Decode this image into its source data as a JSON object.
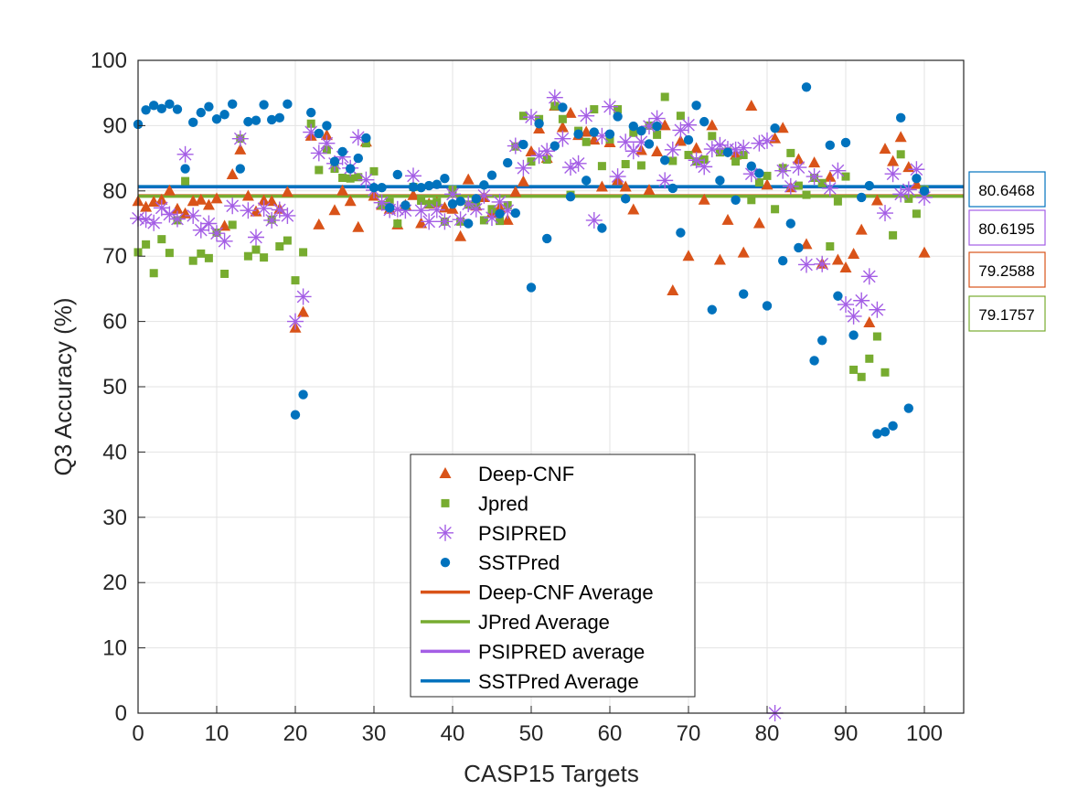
{
  "chart_data": {
    "type": "scatter",
    "xlabel": "CASP15 Targets",
    "ylabel": "Q3 Accuracy (%)",
    "xlim": [
      0,
      105
    ],
    "ylim": [
      0,
      100
    ],
    "xticks": [
      0,
      10,
      20,
      30,
      40,
      50,
      60,
      70,
      80,
      90,
      100
    ],
    "yticks": [
      0,
      10,
      20,
      30,
      40,
      50,
      60,
      70,
      80,
      90,
      100
    ],
    "grid": true,
    "legend_position": "bottom-center",
    "series": [
      {
        "name": "Deep-CNF",
        "marker": "triangle",
        "color": "#D95319",
        "x": [
          0,
          1,
          2,
          3,
          4,
          5,
          6,
          7,
          8,
          9,
          10,
          11,
          12,
          13,
          14,
          15,
          16,
          17,
          18,
          19,
          20,
          21,
          22,
          23,
          24,
          25,
          26,
          27,
          28,
          29,
          30,
          31,
          32,
          33,
          34,
          35,
          36,
          37,
          38,
          39,
          40,
          41,
          42,
          43,
          44,
          45,
          46,
          47,
          48,
          49,
          50,
          51,
          52,
          53,
          54,
          55,
          56,
          57,
          58,
          59,
          60,
          61,
          62,
          63,
          64,
          65,
          66,
          67,
          68,
          69,
          70,
          71,
          72,
          73,
          74,
          75,
          76,
          77,
          78,
          79,
          80,
          81,
          82,
          83,
          84,
          85,
          86,
          87,
          88,
          89,
          90,
          91,
          92,
          93,
          94,
          95,
          96,
          97,
          98,
          99,
          100
        ],
        "y": [
          78.4,
          77.5,
          78.3,
          78.6,
          80.0,
          77.2,
          76.5,
          78.4,
          78.6,
          77.8,
          78.8,
          74.6,
          82.5,
          86.3,
          79.2,
          76.8,
          78.5,
          78.4,
          77.2,
          79.8,
          59.0,
          61.4,
          88.4,
          74.8,
          88.5,
          77.0,
          80.0,
          78.4,
          74.4,
          87.5,
          79.2,
          77.8,
          77.2,
          74.8,
          77.8,
          79.3,
          75.0,
          78.0,
          78.2,
          77.4,
          77.2,
          73.0,
          81.7,
          77.7,
          79.0,
          76.6,
          77.4,
          75.5,
          79.8,
          81.4,
          86.0,
          89.5,
          85.0,
          93.0,
          89.7,
          91.9,
          88.5,
          89.0,
          87.8,
          80.6,
          87.4,
          81.6,
          80.6,
          77.1,
          86.2,
          80.1,
          86.0,
          90.0,
          64.7,
          87.6,
          70.0,
          86.5,
          78.6,
          90.0,
          69.4,
          75.5,
          85.5,
          70.5,
          93.0,
          75.0,
          80.9,
          88.0,
          89.6,
          80.5,
          84.8,
          71.8,
          84.3,
          68.8,
          82.1,
          69.4,
          68.2,
          70.3,
          74.0,
          59.8,
          78.5,
          86.4,
          84.5,
          88.2,
          83.6,
          81.0,
          70.5
        ]
      },
      {
        "name": "Jpred",
        "marker": "square",
        "color": "#77AC30",
        "x": [
          0,
          1,
          2,
          3,
          4,
          5,
          6,
          7,
          8,
          9,
          10,
          11,
          12,
          13,
          14,
          15,
          16,
          17,
          18,
          19,
          20,
          21,
          22,
          23,
          24,
          25,
          26,
          27,
          28,
          29,
          30,
          31,
          32,
          33,
          34,
          35,
          36,
          37,
          38,
          39,
          40,
          41,
          42,
          43,
          44,
          45,
          46,
          47,
          48,
          49,
          50,
          51,
          52,
          53,
          54,
          55,
          56,
          57,
          58,
          59,
          60,
          61,
          62,
          63,
          64,
          65,
          66,
          67,
          68,
          69,
          70,
          71,
          72,
          73,
          74,
          75,
          76,
          77,
          78,
          79,
          80,
          81,
          82,
          83,
          84,
          85,
          86,
          87,
          88,
          89,
          90,
          91,
          92,
          93,
          94,
          95,
          96,
          97,
          98,
          99,
          100
        ],
        "y": [
          70.6,
          71.8,
          67.4,
          72.6,
          70.5,
          75.5,
          81.5,
          69.3,
          70.4,
          69.7,
          73.6,
          67.3,
          74.8,
          88.0,
          70.0,
          71.0,
          69.8,
          75.6,
          71.5,
          72.4,
          66.3,
          70.6,
          90.3,
          83.2,
          86.3,
          83.4,
          82.0,
          81.9,
          82.1,
          87.3,
          83.0,
          77.8,
          78.3,
          75.0,
          77.6,
          80.6,
          78.5,
          78.0,
          78.3,
          75.3,
          80.2,
          75.3,
          77.9,
          78.0,
          75.5,
          77.2,
          75.4,
          77.8,
          86.8,
          91.5,
          84.5,
          91.0,
          84.8,
          93.0,
          91.0,
          79.4,
          89.2,
          87.5,
          92.5,
          83.8,
          87.9,
          92.5,
          84.1,
          88.9,
          83.9,
          90.0,
          88.6,
          94.4,
          84.6,
          91.5,
          85.5,
          84.5,
          84.8,
          88.4,
          85.9,
          86.0,
          84.5,
          85.5,
          78.6,
          81.3,
          82.3,
          77.2,
          83.5,
          85.8,
          80.8,
          79.4,
          82.0,
          81.2,
          71.5,
          78.4,
          82.2,
          52.6,
          51.5,
          54.3,
          57.7,
          52.2,
          73.2,
          85.6,
          78.8,
          76.5,
          80.2
        ]
      },
      {
        "name": "PSIPRED",
        "marker": "asterisk",
        "color": "#A45EE5",
        "x": [
          0,
          1,
          2,
          3,
          4,
          5,
          6,
          7,
          8,
          9,
          10,
          11,
          12,
          13,
          14,
          15,
          16,
          17,
          18,
          19,
          20,
          21,
          22,
          23,
          24,
          25,
          26,
          27,
          28,
          29,
          30,
          31,
          32,
          33,
          34,
          35,
          36,
          37,
          38,
          39,
          40,
          41,
          42,
          43,
          44,
          45,
          46,
          47,
          48,
          49,
          50,
          51,
          52,
          53,
          54,
          55,
          56,
          57,
          58,
          59,
          60,
          61,
          62,
          63,
          64,
          65,
          66,
          67,
          68,
          69,
          70,
          71,
          72,
          73,
          74,
          75,
          76,
          77,
          78,
          79,
          80,
          81,
          82,
          83,
          84,
          85,
          86,
          87,
          88,
          89,
          90,
          91,
          92,
          93,
          94,
          95,
          96,
          97,
          98,
          99,
          100
        ],
        "y": [
          75.8,
          75.6,
          75.1,
          77.4,
          76.4,
          75.7,
          85.6,
          76.2,
          74.0,
          75.0,
          73.5,
          72.3,
          77.7,
          88.0,
          77.0,
          72.9,
          77.3,
          75.5,
          77.1,
          76.2,
          60.0,
          63.8,
          89.0,
          85.8,
          87.3,
          84.2,
          85.2,
          83.5,
          88.2,
          81.7,
          80.1,
          78.2,
          77.1,
          77.2,
          77.0,
          82.3,
          77.0,
          75.3,
          77.1,
          75.3,
          79.5,
          75.6,
          78.0,
          77.2,
          79.3,
          75.9,
          78.3,
          77.0,
          86.9,
          83.5,
          91.3,
          85.4,
          86.1,
          94.3,
          88.0,
          83.6,
          84.2,
          91.5,
          75.5,
          88.4,
          92.9,
          82.2,
          87.5,
          86.1,
          87.5,
          89.9,
          91.1,
          81.6,
          86.3,
          89.3,
          90.1,
          84.7,
          83.7,
          86.4,
          87.0,
          86.4,
          86.3,
          86.6,
          82.6,
          87.3,
          87.7,
          0.0,
          83.1,
          80.7,
          83.6,
          68.7,
          82.2,
          68.8,
          80.4,
          83.1,
          62.6,
          60.8,
          63.2,
          66.9,
          61.8,
          76.6,
          82.6,
          79.5,
          80.2,
          83.3,
          79.0
        ]
      },
      {
        "name": "SSTPred",
        "marker": "circle",
        "color": "#0072BD",
        "x": [
          0,
          1,
          2,
          3,
          4,
          5,
          6,
          7,
          8,
          9,
          10,
          11,
          12,
          13,
          14,
          15,
          16,
          17,
          18,
          19,
          20,
          21,
          22,
          23,
          24,
          25,
          26,
          27,
          28,
          29,
          30,
          31,
          32,
          33,
          34,
          35,
          36,
          37,
          38,
          39,
          40,
          41,
          42,
          43,
          44,
          45,
          46,
          47,
          48,
          49,
          50,
          51,
          52,
          53,
          54,
          55,
          56,
          57,
          58,
          59,
          60,
          61,
          62,
          63,
          64,
          65,
          66,
          67,
          68,
          69,
          70,
          71,
          72,
          73,
          74,
          75,
          76,
          77,
          78,
          79,
          80,
          81,
          82,
          83,
          84,
          85,
          86,
          87,
          88,
          89,
          90,
          91,
          92,
          93,
          94,
          95,
          96,
          97,
          98,
          99,
          100
        ],
        "y": [
          90.2,
          92.4,
          93.1,
          92.6,
          93.3,
          92.5,
          83.4,
          90.5,
          92.0,
          92.9,
          91.0,
          91.7,
          93.3,
          83.4,
          90.6,
          90.8,
          93.2,
          90.9,
          91.2,
          93.3,
          45.7,
          48.8,
          92.0,
          88.8,
          90.0,
          84.5,
          86.0,
          83.4,
          85.0,
          88.1,
          80.5,
          80.5,
          77.4,
          82.5,
          77.8,
          80.6,
          80.5,
          80.8,
          81.0,
          81.9,
          78.0,
          78.4,
          75.0,
          78.8,
          80.9,
          82.4,
          76.5,
          84.3,
          76.6,
          87.1,
          65.2,
          90.3,
          72.7,
          86.9,
          92.8,
          79.1,
          88.7,
          81.6,
          89.0,
          74.3,
          88.7,
          91.4,
          78.8,
          89.9,
          89.2,
          87.2,
          89.9,
          84.7,
          80.4,
          73.6,
          87.8,
          93.1,
          90.6,
          61.8,
          81.6,
          85.9,
          78.6,
          64.2,
          83.8,
          82.7,
          62.4,
          89.6,
          69.3,
          75.0,
          71.3,
          95.9,
          54.0,
          57.1,
          87.0,
          63.9,
          87.4,
          57.9,
          79.0,
          80.8,
          42.8,
          43.1,
          44.0,
          91.2,
          46.7,
          81.9,
          80.0
        ]
      }
    ],
    "averages": [
      {
        "name": "Deep-CNF Average",
        "value": 79.2588,
        "color": "#D95319"
      },
      {
        "name": "JPred Average",
        "value": 79.1757,
        "color": "#77AC30"
      },
      {
        "name": "PSIPRED average",
        "value": 80.6195,
        "color": "#A45EE5"
      },
      {
        "name": "SSTPred Average",
        "value": 80.6468,
        "color": "#0072BD"
      }
    ],
    "average_labels": [
      {
        "text": "80.6468",
        "color": "#0072BD"
      },
      {
        "text": "80.6195",
        "color": "#A45EE5"
      },
      {
        "text": "79.2588",
        "color": "#D95319"
      },
      {
        "text": "79.1757",
        "color": "#77AC30"
      }
    ]
  }
}
